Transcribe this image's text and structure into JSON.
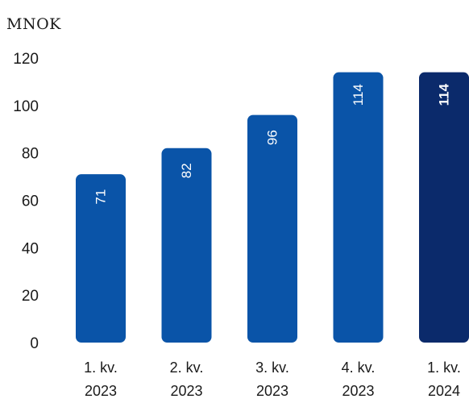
{
  "chart_data": {
    "type": "bar",
    "ylabel": "MNOK",
    "ylim": [
      0,
      120
    ],
    "yticks": [
      0,
      20,
      40,
      60,
      80,
      100,
      120
    ],
    "grid": false,
    "categories": [
      [
        "1. kv.",
        "2023"
      ],
      [
        "2. kv.",
        "2023"
      ],
      [
        "3. kv.",
        "2023"
      ],
      [
        "4. kv.",
        "2023"
      ],
      [
        "1. kv.",
        "2024"
      ]
    ],
    "values": [
      71,
      82,
      96,
      114,
      114
    ],
    "data_labels": [
      "71",
      "82",
      "96",
      "114",
      "114"
    ],
    "colors": [
      "#0a54a8",
      "#0a54a8",
      "#0a54a8",
      "#0a54a8",
      "#0b2a6b"
    ],
    "highlight_index": 4
  }
}
